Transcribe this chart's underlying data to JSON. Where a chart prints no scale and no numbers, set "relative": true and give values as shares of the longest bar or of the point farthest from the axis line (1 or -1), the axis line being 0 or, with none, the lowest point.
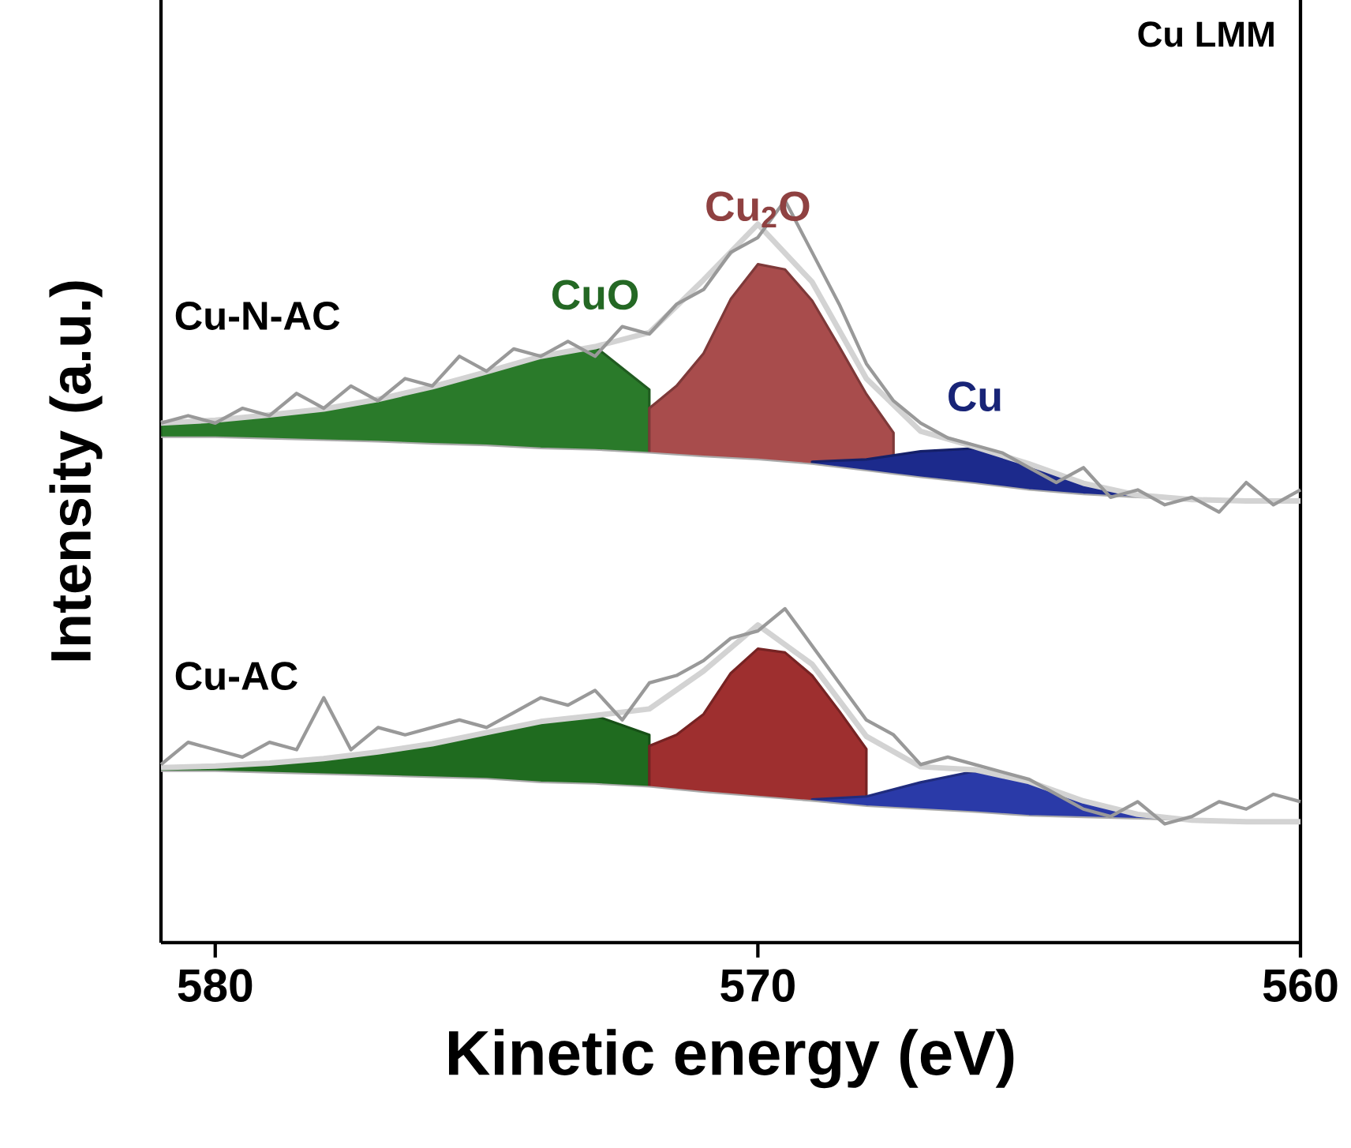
{
  "chart_data": {
    "type": "area",
    "relative": true,
    "xlabel": "Kinetic energy (eV)",
    "ylabel": "Intensity (a.u.)",
    "xlim": [
      581,
      560
    ],
    "xticks": [
      580,
      570,
      560
    ],
    "tick_labels": "x",
    "annotations": [
      "Cu-N-AC",
      "Cu-AC",
      "Cu LMM"
    ],
    "series": [
      {
        "name": "CuO",
        "color": "#2a7a2a",
        "x": [
          581,
          580,
          579,
          578,
          577,
          576,
          575,
          574,
          573,
          572
        ],
        "values": [
          0.7,
          0.704,
          0.711,
          0.719,
          0.732,
          0.749,
          0.769,
          0.79,
          0.803,
          0.745
        ]
      },
      {
        "name": "Cu$_{2}$O",
        "color": "#a84c4c",
        "x": [
          572,
          571.5,
          571,
          570.5,
          570,
          569.5,
          569,
          568.5,
          568,
          567.5
        ],
        "values": [
          0.72,
          0.75,
          0.794,
          0.867,
          0.914,
          0.907,
          0.865,
          0.803,
          0.739,
          0.687
        ]
      },
      {
        "name": "Cu",
        "color": "#1c2a8c",
        "x": [
          569,
          568,
          567,
          566,
          565,
          564,
          563,
          562
        ],
        "values": [
          0.648,
          0.651,
          0.662,
          0.666,
          0.645,
          0.619,
          0.603,
          0.597
        ]
      },
      {
        "color": "#1f6b1f",
        "x": [
          581,
          580,
          579,
          578,
          577,
          576,
          575,
          574,
          573,
          572
        ],
        "values": [
          0.236,
          0.238,
          0.242,
          0.248,
          0.257,
          0.268,
          0.283,
          0.298,
          0.306,
          0.28
        ]
      },
      {
        "color": "#9e2f2f",
        "x": [
          572,
          571.5,
          571,
          570.5,
          570,
          569.5,
          569,
          568.5,
          568
        ],
        "values": [
          0.265,
          0.28,
          0.308,
          0.363,
          0.396,
          0.391,
          0.36,
          0.312,
          0.261
        ]
      },
      {
        "color": "#2a3aa8",
        "x": [
          569,
          568,
          567,
          566,
          565,
          564,
          563,
          562
        ],
        "values": [
          0.193,
          0.197,
          0.216,
          0.231,
          0.217,
          0.191,
          0.173,
          0.165
        ]
      },
      {
        "type": "line",
        "color": "#aaaaaa",
        "x": [
          581,
          580,
          579,
          578,
          577,
          576,
          575,
          574,
          573,
          572,
          571,
          570,
          569,
          568,
          567,
          566,
          565,
          564,
          563,
          562,
          561,
          560
        ],
        "values": [
          0.681,
          0.681,
          0.679,
          0.677,
          0.675,
          0.672,
          0.67,
          0.666,
          0.664,
          0.66,
          0.655,
          0.651,
          0.645,
          0.636,
          0.627,
          0.619,
          0.61,
          0.604,
          0.6,
          0.597,
          0.595,
          0.595
        ]
      },
      {
        "type": "line",
        "color": "#aaaaaa",
        "x": [
          581,
          580,
          579,
          578,
          577,
          576,
          575,
          574,
          573,
          572,
          571,
          570,
          569,
          568,
          567,
          566,
          565,
          564,
          563,
          562,
          561,
          560
        ],
        "values": [
          0.231,
          0.231,
          0.229,
          0.227,
          0.225,
          0.223,
          0.221,
          0.216,
          0.214,
          0.21,
          0.203,
          0.197,
          0.191,
          0.184,
          0.18,
          0.176,
          0.171,
          0.169,
          0.167,
          0.165,
          0.163,
          0.163
        ]
      },
      {
        "type": "line",
        "color": "#d3d3d3",
        "x": [
          581,
          580,
          579,
          578,
          577,
          576,
          575,
          574,
          573,
          572,
          571,
          570,
          569,
          568,
          567,
          566,
          565,
          564,
          563,
          562,
          561,
          560
        ],
        "values": [
          0.7,
          0.704,
          0.711,
          0.719,
          0.732,
          0.749,
          0.769,
          0.79,
          0.803,
          0.822,
          0.893,
          0.968,
          0.89,
          0.76,
          0.689,
          0.668,
          0.645,
          0.619,
          0.603,
          0.597,
          0.595,
          0.595
        ]
      },
      {
        "type": "line",
        "color": "#d3d3d3",
        "x": [
          581,
          580,
          579,
          578,
          577,
          576,
          575,
          574,
          573,
          572,
          571,
          570,
          569,
          568,
          567,
          566,
          565,
          564,
          563,
          562,
          561,
          560
        ],
        "values": [
          0.236,
          0.238,
          0.242,
          0.248,
          0.257,
          0.268,
          0.283,
          0.298,
          0.306,
          0.315,
          0.366,
          0.428,
          0.375,
          0.278,
          0.237,
          0.233,
          0.217,
          0.191,
          0.173,
          0.165,
          0.163,
          0.163
        ]
      },
      {
        "type": "line",
        "color": "#999999",
        "x": [
          581,
          580.5,
          580,
          579.5,
          579,
          578.5,
          578,
          577.5,
          577,
          576.5,
          576,
          575.5,
          575,
          574.5,
          574,
          573.5,
          573,
          572.5,
          572,
          571.5,
          571,
          570.5,
          570,
          569.5,
          569,
          568.5,
          568,
          567.5,
          567,
          566.5,
          566,
          565.5,
          565,
          564.5,
          564,
          563.5,
          563,
          562.5,
          562,
          561.5,
          561,
          560.5,
          560
        ],
        "values": [
          0.7,
          0.71,
          0.7,
          0.72,
          0.71,
          0.74,
          0.72,
          0.75,
          0.73,
          0.76,
          0.75,
          0.79,
          0.77,
          0.8,
          0.79,
          0.81,
          0.79,
          0.83,
          0.82,
          0.86,
          0.88,
          0.93,
          0.95,
          1.0,
          0.93,
          0.86,
          0.78,
          0.73,
          0.7,
          0.68,
          0.67,
          0.66,
          0.64,
          0.62,
          0.64,
          0.6,
          0.61,
          0.59,
          0.6,
          0.58,
          0.62,
          0.59,
          0.61
        ]
      },
      {
        "type": "line",
        "color": "#999999",
        "x": [
          581,
          580.5,
          580,
          579.5,
          579,
          578.5,
          578,
          577.5,
          577,
          576.5,
          576,
          575.5,
          575,
          574.5,
          574,
          573.5,
          573,
          572.5,
          572,
          571.5,
          571,
          570.5,
          570,
          569.5,
          569,
          568.5,
          568,
          567.5,
          567,
          566.5,
          566,
          565.5,
          565,
          564.5,
          564,
          563.5,
          563,
          562.5,
          562,
          561.5,
          561,
          560.5,
          560
        ],
        "values": [
          0.24,
          0.27,
          0.26,
          0.25,
          0.27,
          0.26,
          0.33,
          0.26,
          0.29,
          0.28,
          0.29,
          0.3,
          0.29,
          0.31,
          0.33,
          0.32,
          0.34,
          0.3,
          0.35,
          0.36,
          0.38,
          0.41,
          0.42,
          0.45,
          0.4,
          0.35,
          0.3,
          0.28,
          0.24,
          0.25,
          0.24,
          0.23,
          0.22,
          0.2,
          0.18,
          0.17,
          0.19,
          0.16,
          0.17,
          0.19,
          0.18,
          0.2,
          0.19
        ]
      }
    ]
  }
}
